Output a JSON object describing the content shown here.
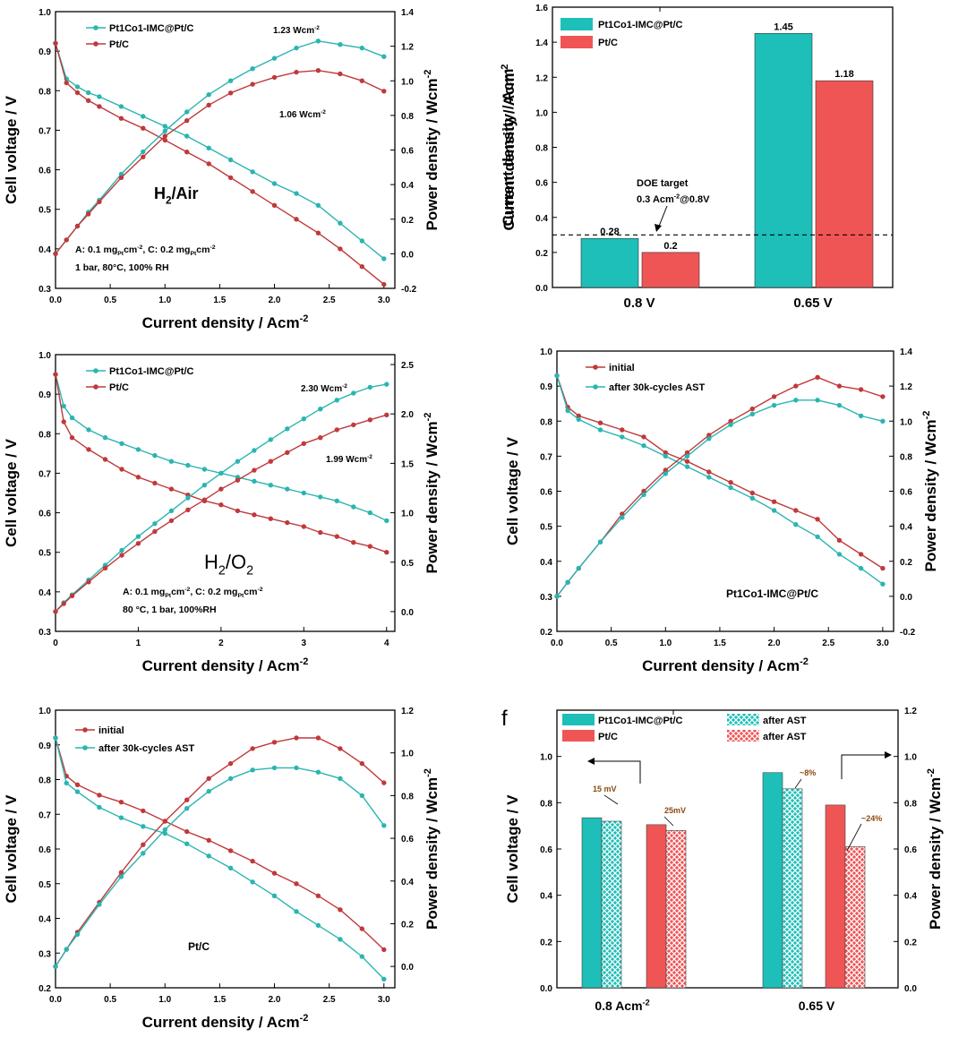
{
  "colors": {
    "teal": "#2ab5b0",
    "red": "#c0393b",
    "bar_red": "#f05555",
    "bar_teal": "#1dbfb8",
    "axis": "#000000"
  },
  "chart_data": [
    {
      "id": "a",
      "type": "line",
      "panel_label": "",
      "xlabel": "Current density / Acm",
      "xlabel_sup": "-2",
      "ylabel": "Cell voltage / V",
      "y2label": "Power density / Wcm",
      "y2label_sup": "-2",
      "xlim": [
        0,
        3.1
      ],
      "xticks": [
        0.0,
        0.5,
        1.0,
        1.5,
        2.0,
        2.5,
        3.0
      ],
      "xtick_labels": [
        "0.0",
        "0.5",
        "1.0",
        "1.5",
        "2.0",
        "2.5",
        "3.0"
      ],
      "ylim": [
        0.3,
        1.0
      ],
      "yticks": [
        0.3,
        0.4,
        0.5,
        0.6,
        0.7,
        0.8,
        0.9,
        1.0
      ],
      "ytick_labels": [
        "0.3",
        "0.4",
        "0.5",
        "0.6",
        "0.7",
        "0.8",
        "0.9",
        "1.0"
      ],
      "y2lim": [
        -0.2,
        1.4
      ],
      "y2ticks": [
        -0.2,
        0.0,
        0.2,
        0.4,
        0.6,
        0.8,
        1.0,
        1.2,
        1.4
      ],
      "y2tick_labels": [
        "-0.2",
        "0.0",
        "0.2",
        "0.4",
        "0.6",
        "0.8",
        "1.0",
        "1.2",
        "1.4"
      ],
      "legend": [
        "Pt1Co1-IMC@Pt/C",
        "Pt/C"
      ],
      "x": [
        0,
        0.1,
        0.2,
        0.3,
        0.4,
        0.6,
        0.8,
        1.0,
        1.2,
        1.4,
        1.6,
        1.8,
        2.0,
        2.2,
        2.4,
        2.6,
        2.8,
        3.0
      ],
      "series": [
        {
          "name": "Pt1Co1-IMC@Pt/C voltage",
          "axis": "left",
          "color": "teal",
          "values": [
            0.92,
            0.83,
            0.81,
            0.795,
            0.785,
            0.76,
            0.735,
            0.71,
            0.685,
            0.655,
            0.625,
            0.595,
            0.565,
            0.54,
            0.51,
            0.465,
            0.42,
            0.375
          ]
        },
        {
          "name": "Pt/C voltage",
          "axis": "left",
          "color": "red",
          "values": [
            0.92,
            0.82,
            0.795,
            0.775,
            0.76,
            0.73,
            0.705,
            0.675,
            0.645,
            0.615,
            0.58,
            0.545,
            0.51,
            0.475,
            0.44,
            0.4,
            0.355,
            0.31
          ]
        },
        {
          "name": "Pt1Co1-IMC@Pt/C power",
          "axis": "right",
          "color": "teal",
          "values": [
            0.0,
            0.08,
            0.16,
            0.24,
            0.31,
            0.46,
            0.59,
            0.71,
            0.82,
            0.92,
            1.0,
            1.07,
            1.13,
            1.19,
            1.23,
            1.21,
            1.19,
            1.14
          ]
        },
        {
          "name": "Pt/C power",
          "axis": "right",
          "color": "red",
          "values": [
            0.0,
            0.08,
            0.16,
            0.23,
            0.3,
            0.44,
            0.56,
            0.68,
            0.77,
            0.86,
            0.93,
            0.98,
            1.02,
            1.05,
            1.06,
            1.04,
            1.0,
            0.94
          ]
        }
      ],
      "annotations": {
        "peak1": "1.23 Wcm",
        "peak2": "1.06 Wcm",
        "sup": "-2",
        "gas": "H",
        "gas_sub": "2",
        "gas_rest": "/Air",
        "cond1": "A: 0.1 mg",
        "cond1_sub": "Pt",
        "cond1b": "cm",
        "cond1b_sup": "-2",
        "cond1c": ", C: 0.2 mg",
        "cond1c_sub": "Pt",
        "cond1d": "cm",
        "cond1d_sup": "-2",
        "cond2": "1 bar, 80°C, 100% RH"
      }
    },
    {
      "id": "b",
      "type": "bar",
      "panel_label": "",
      "ylabel": "Current density / Acm",
      "ylabel_sup": "-2",
      "categories": [
        "0.8 V",
        "0.65 V"
      ],
      "ylim": [
        0.0,
        1.6
      ],
      "yticks": [
        0.0,
        0.2,
        0.4,
        0.6,
        0.8,
        1.0,
        1.2,
        1.4,
        1.6
      ],
      "ytick_labels": [
        "0.0",
        "0.2",
        "0.4",
        "0.6",
        "0.8",
        "1.0",
        "1.2",
        "1.4",
        "1.6"
      ],
      "series": [
        {
          "name": "Pt1Co1-IMC@Pt/C",
          "color": "bar_teal",
          "values": [
            0.28,
            1.45
          ],
          "labels": [
            "0.28",
            "1.45"
          ]
        },
        {
          "name": "Pt/C",
          "color": "bar_red",
          "values": [
            0.2,
            1.18
          ],
          "labels": [
            "0.2",
            "1.18"
          ]
        }
      ],
      "target": {
        "value": 0.3,
        "label1": "DOE target",
        "label2": "0.3 Acm",
        "label2_sup": "-2",
        "label2_rest": "@0.8V"
      }
    },
    {
      "id": "c",
      "type": "line",
      "panel_label": "",
      "xlabel": "Current density / Acm",
      "xlabel_sup": "-2",
      "ylabel": "Cell voltage / V",
      "y2label": "Power density / Wcm",
      "y2label_sup": "-2",
      "xlim": [
        0,
        4.1
      ],
      "xticks": [
        0,
        1,
        2,
        3,
        4
      ],
      "xtick_labels": [
        "0",
        "1",
        "2",
        "3",
        "4"
      ],
      "ylim": [
        0.3,
        1.0
      ],
      "yticks": [
        0.3,
        0.4,
        0.5,
        0.6,
        0.7,
        0.8,
        0.9,
        1.0
      ],
      "ytick_labels": [
        "0.3",
        "0.4",
        "0.5",
        "0.6",
        "0.7",
        "0.8",
        "0.9",
        "1.0"
      ],
      "y2lim": [
        -0.2,
        2.6
      ],
      "y2ticks": [
        0.0,
        0.5,
        1.0,
        1.5,
        2.0,
        2.5
      ],
      "y2tick_labels": [
        "0.0",
        "0.5",
        "1.0",
        "1.5",
        "2.0",
        "2.5"
      ],
      "legend": [
        "Pt1Co1-IMC@Pt/C",
        "Pt/C"
      ],
      "x": [
        0,
        0.1,
        0.2,
        0.4,
        0.6,
        0.8,
        1.0,
        1.2,
        1.4,
        1.6,
        1.8,
        2.0,
        2.2,
        2.4,
        2.6,
        2.8,
        3.0,
        3.2,
        3.4,
        3.6,
        3.8,
        4.0
      ],
      "series": [
        {
          "name": "Pt1Co1-IMC@Pt/C voltage",
          "axis": "left",
          "color": "teal",
          "values": [
            0.95,
            0.87,
            0.84,
            0.81,
            0.79,
            0.775,
            0.76,
            0.745,
            0.73,
            0.72,
            0.71,
            0.7,
            0.69,
            0.68,
            0.67,
            0.66,
            0.65,
            0.64,
            0.63,
            0.615,
            0.6,
            0.58
          ]
        },
        {
          "name": "Pt/C voltage",
          "axis": "left",
          "color": "red",
          "values": [
            0.95,
            0.83,
            0.79,
            0.76,
            0.735,
            0.71,
            0.69,
            0.675,
            0.66,
            0.645,
            0.63,
            0.62,
            0.605,
            0.595,
            0.585,
            0.575,
            0.565,
            0.55,
            0.54,
            0.525,
            0.515,
            0.5
          ]
        },
        {
          "name": "Pt1Co1-IMC@Pt/C power",
          "axis": "right",
          "color": "teal",
          "values": [
            0.0,
            0.09,
            0.17,
            0.32,
            0.47,
            0.62,
            0.76,
            0.89,
            1.02,
            1.15,
            1.28,
            1.4,
            1.52,
            1.63,
            1.74,
            1.85,
            1.95,
            2.05,
            2.14,
            2.21,
            2.27,
            2.3
          ]
        },
        {
          "name": "Pt/C power",
          "axis": "right",
          "color": "red",
          "values": [
            0.0,
            0.08,
            0.16,
            0.3,
            0.44,
            0.57,
            0.69,
            0.81,
            0.92,
            1.03,
            1.13,
            1.24,
            1.33,
            1.43,
            1.52,
            1.61,
            1.7,
            1.76,
            1.84,
            1.89,
            1.94,
            1.99
          ]
        }
      ],
      "annotations": {
        "peak1": "2.30 Wcm",
        "peak2": "1.99 Wcm",
        "sup": "-2",
        "gas": "H",
        "gas_sub": "2",
        "gas_rest": "/O",
        "gas_sub2": "2",
        "cond1": "A: 0.1 mg",
        "cond1_sub": "Pt",
        "cond1b": "cm",
        "cond1b_sup": "-2",
        "cond1c": ", C: 0.2 mg",
        "cond1c_sub": "Pt",
        "cond1d": "cm",
        "cond1d_sup": "-2",
        "cond2": "80 °C, 1 bar, 100%RH"
      }
    },
    {
      "id": "d",
      "type": "line",
      "panel_label": "",
      "xlabel": "Current density / Acm",
      "xlabel_sup": "-2",
      "ylabel": "Cell voltage / V",
      "y2label": "Power density / Wcm",
      "y2label_sup": "-2",
      "xlim": [
        0,
        3.1
      ],
      "xticks": [
        0.0,
        0.5,
        1.0,
        1.5,
        2.0,
        2.5,
        3.0
      ],
      "xtick_labels": [
        "0.0",
        "0.5",
        "1.0",
        "1.5",
        "2.0",
        "2.5",
        "3.0"
      ],
      "ylim": [
        0.2,
        1.0
      ],
      "yticks": [
        0.2,
        0.3,
        0.4,
        0.5,
        0.6,
        0.7,
        0.8,
        0.9,
        1.0
      ],
      "ytick_labels": [
        "0.2",
        "0.3",
        "0.4",
        "0.5",
        "0.6",
        "0.7",
        "0.8",
        "0.9",
        "1.0"
      ],
      "y2lim": [
        -0.2,
        1.4
      ],
      "y2ticks": [
        -0.2,
        0.0,
        0.2,
        0.4,
        0.6,
        0.8,
        1.0,
        1.2,
        1.4
      ],
      "y2tick_labels": [
        "-0.2",
        "0.0",
        "0.2",
        "0.4",
        "0.6",
        "0.8",
        "1.0",
        "1.2",
        "1.4"
      ],
      "legend": [
        "initial",
        "after 30k-cycles AST"
      ],
      "x": [
        0,
        0.1,
        0.2,
        0.4,
        0.6,
        0.8,
        1.0,
        1.2,
        1.4,
        1.6,
        1.8,
        2.0,
        2.2,
        2.4,
        2.6,
        2.8,
        3.0
      ],
      "series": [
        {
          "name": "initial voltage",
          "axis": "left",
          "color": "red",
          "values": [
            0.93,
            0.84,
            0.815,
            0.795,
            0.775,
            0.755,
            0.71,
            0.685,
            0.655,
            0.625,
            0.595,
            0.57,
            0.545,
            0.52,
            0.46,
            0.42,
            0.38
          ]
        },
        {
          "name": "after AST voltage",
          "axis": "left",
          "color": "teal",
          "values": [
            0.93,
            0.83,
            0.805,
            0.775,
            0.755,
            0.73,
            0.7,
            0.67,
            0.64,
            0.61,
            0.58,
            0.545,
            0.505,
            0.47,
            0.42,
            0.38,
            0.335
          ]
        },
        {
          "name": "initial power",
          "axis": "right",
          "color": "red",
          "values": [
            0.0,
            0.08,
            0.16,
            0.31,
            0.47,
            0.6,
            0.72,
            0.82,
            0.92,
            1.0,
            1.07,
            1.14,
            1.2,
            1.25,
            1.2,
            1.18,
            1.14
          ]
        },
        {
          "name": "after AST power",
          "axis": "right",
          "color": "teal",
          "values": [
            0.0,
            0.08,
            0.16,
            0.31,
            0.45,
            0.58,
            0.7,
            0.8,
            0.9,
            0.98,
            1.04,
            1.09,
            1.12,
            1.12,
            1.09,
            1.03,
            1.0
          ]
        }
      ],
      "annotations": {
        "catalyst": "Pt1Co1-IMC@Pt/C"
      }
    },
    {
      "id": "e",
      "type": "line",
      "panel_label": "",
      "xlabel": "Current density / Acm",
      "xlabel_sup": "-2",
      "ylabel": "Cell voltage / V",
      "y2label": "Power density / Wcm",
      "y2label_sup": "-2",
      "xlim": [
        0,
        3.1
      ],
      "xticks": [
        0.0,
        0.5,
        1.0,
        1.5,
        2.0,
        2.5,
        3.0
      ],
      "xtick_labels": [
        "0.0",
        "0.5",
        "1.0",
        "1.5",
        "2.0",
        "2.5",
        "3.0"
      ],
      "ylim": [
        0.2,
        1.0
      ],
      "yticks": [
        0.2,
        0.3,
        0.4,
        0.5,
        0.6,
        0.7,
        0.8,
        0.9,
        1.0
      ],
      "ytick_labels": [
        "0.2",
        "0.3",
        "0.4",
        "0.5",
        "0.6",
        "0.7",
        "0.8",
        "0.9",
        "1.0"
      ],
      "y2lim": [
        -0.1,
        1.2
      ],
      "y2ticks": [
        0.0,
        0.2,
        0.4,
        0.6,
        0.8,
        1.0,
        1.2
      ],
      "y2tick_labels": [
        "0.0",
        "0.2",
        "0.4",
        "0.6",
        "0.8",
        "1.0",
        "1.2"
      ],
      "legend": [
        "initial",
        "after 30k-cycles AST"
      ],
      "x": [
        0,
        0.1,
        0.2,
        0.4,
        0.6,
        0.8,
        1.0,
        1.2,
        1.4,
        1.6,
        1.8,
        2.0,
        2.2,
        2.4,
        2.6,
        2.8,
        3.0
      ],
      "series": [
        {
          "name": "initial voltage",
          "axis": "left",
          "color": "red",
          "values": [
            0.92,
            0.81,
            0.785,
            0.755,
            0.735,
            0.71,
            0.68,
            0.65,
            0.625,
            0.595,
            0.565,
            0.53,
            0.5,
            0.465,
            0.425,
            0.37,
            0.31
          ]
        },
        {
          "name": "after AST voltage",
          "axis": "left",
          "color": "teal",
          "values": [
            0.92,
            0.79,
            0.765,
            0.72,
            0.69,
            0.665,
            0.645,
            0.615,
            0.58,
            0.545,
            0.505,
            0.465,
            0.42,
            0.38,
            0.34,
            0.29,
            0.225
          ]
        },
        {
          "name": "initial power",
          "axis": "right",
          "color": "red",
          "values": [
            0.0,
            0.08,
            0.16,
            0.3,
            0.44,
            0.57,
            0.68,
            0.78,
            0.88,
            0.95,
            1.02,
            1.05,
            1.07,
            1.07,
            1.02,
            0.95,
            0.86
          ]
        },
        {
          "name": "after AST power",
          "axis": "right",
          "color": "teal",
          "values": [
            0.0,
            0.08,
            0.15,
            0.29,
            0.42,
            0.53,
            0.64,
            0.74,
            0.82,
            0.88,
            0.92,
            0.93,
            0.93,
            0.91,
            0.88,
            0.8,
            0.66
          ]
        }
      ],
      "annotations": {
        "catalyst": "Pt/C"
      }
    },
    {
      "id": "f",
      "type": "bar",
      "panel_label": "f",
      "ylabel": "Cell voltage / V",
      "y2label": "Power density / Wcm",
      "y2label_sup": "-2",
      "categories": [
        "0.8 Acm",
        "0.65 V"
      ],
      "category_sup": [
        "-2",
        ""
      ],
      "ylim": [
        0.0,
        1.2
      ],
      "yticks": [
        0.0,
        0.2,
        0.4,
        0.6,
        0.8,
        1.0
      ],
      "ytick_labels": [
        "0.0",
        "0.2",
        "0.4",
        "0.6",
        "0.8",
        "1.0"
      ],
      "y2lim": [
        0.0,
        1.2
      ],
      "y2ticks": [
        0.0,
        0.2,
        0.4,
        0.6,
        0.8,
        1.0,
        1.2
      ],
      "y2tick_labels": [
        "0.0",
        "0.2",
        "0.4",
        "0.6",
        "0.8",
        "1.0",
        "1.2"
      ],
      "legend": [
        "Pt1Co1-IMC@Pt/C",
        "after AST",
        "Pt/C",
        "after AST"
      ],
      "groups": [
        {
          "category": "0.8 Acm",
          "axis": "left",
          "bars": [
            {
              "name": "Pt1Co1-IMC@Pt/C",
              "value": 0.735,
              "color": "bar_teal",
              "hatch": false
            },
            {
              "name": "after AST",
              "value": 0.72,
              "color": "bar_teal",
              "hatch": true
            },
            {
              "name": "Pt/C",
              "value": 0.705,
              "color": "bar_red",
              "hatch": false
            },
            {
              "name": "after AST",
              "value": 0.68,
              "color": "bar_red",
              "hatch": true
            }
          ],
          "labels": [
            "15 mV",
            "25mV"
          ]
        },
        {
          "category": "0.65 V",
          "axis": "right",
          "bars": [
            {
              "name": "Pt1Co1-IMC@Pt/C",
              "value": 0.93,
              "color": "bar_teal",
              "hatch": false
            },
            {
              "name": "after AST",
              "value": 0.86,
              "color": "bar_teal",
              "hatch": true
            },
            {
              "name": "Pt/C",
              "value": 0.79,
              "color": "bar_red",
              "hatch": false
            },
            {
              "name": "after AST",
              "value": 0.61,
              "color": "bar_red",
              "hatch": true
            }
          ],
          "labels": [
            "~8%",
            "~24%"
          ]
        }
      ]
    }
  ]
}
